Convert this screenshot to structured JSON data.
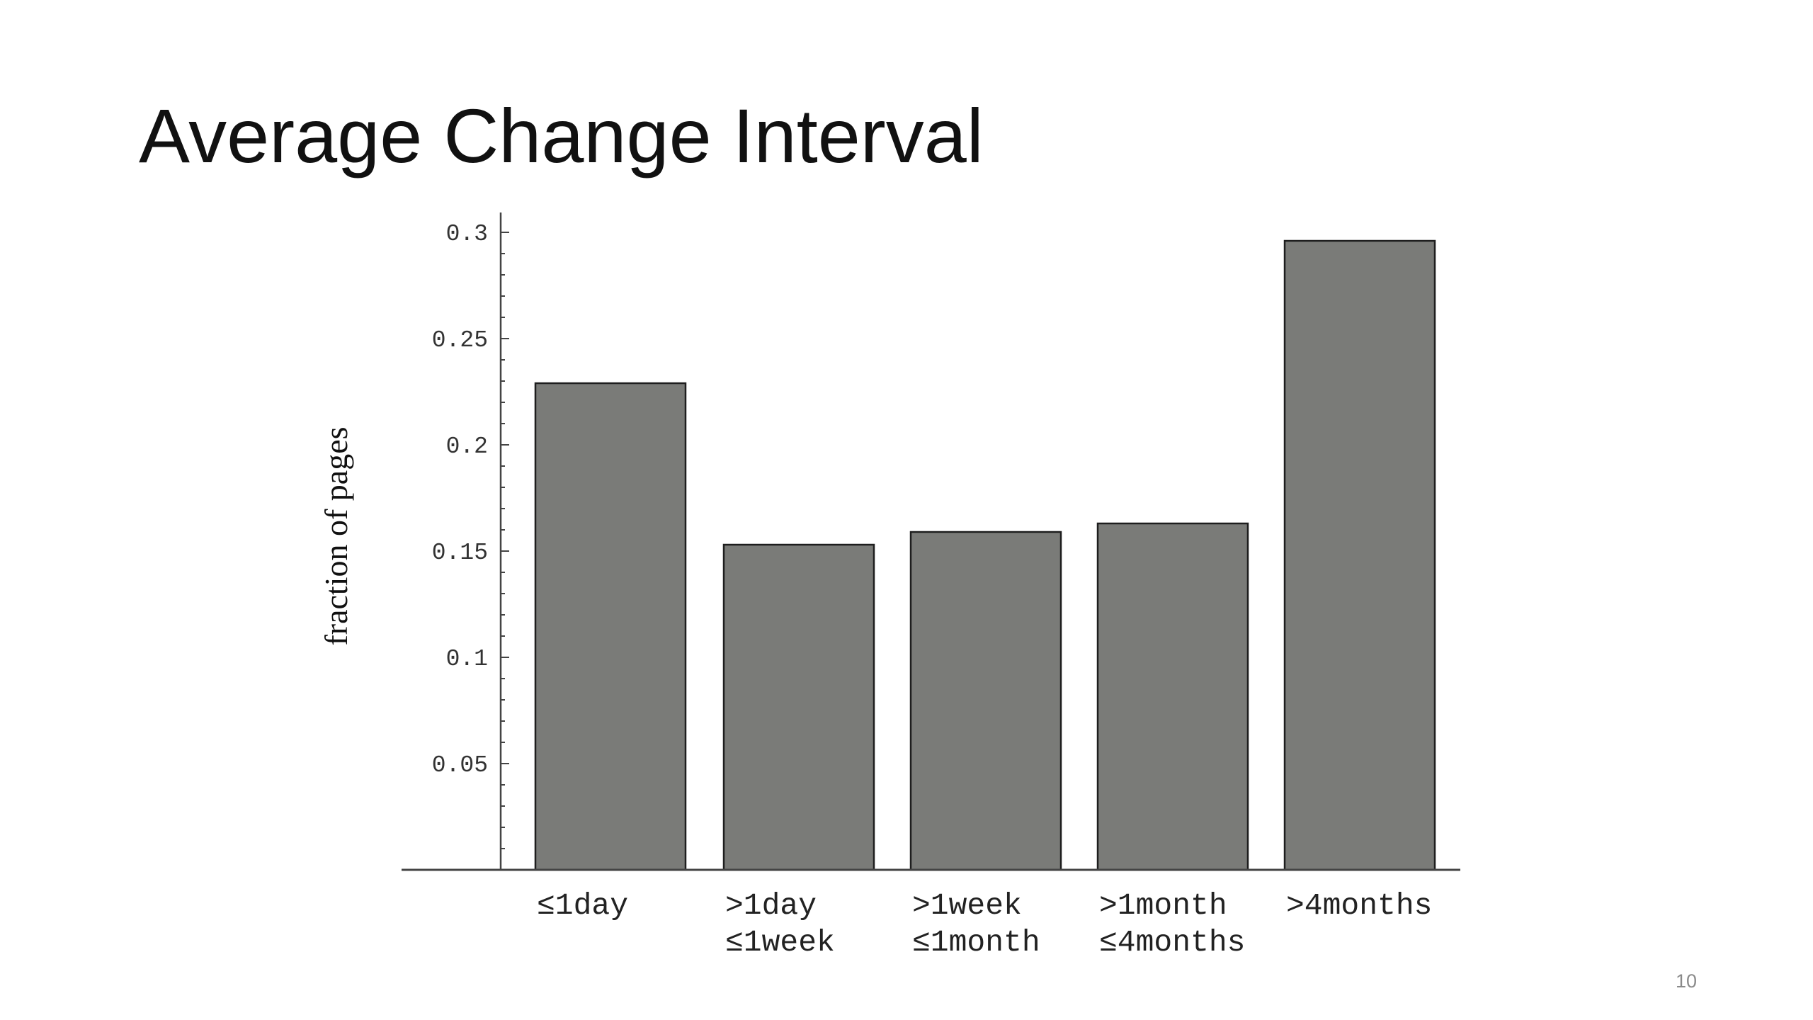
{
  "slide": {
    "title": "Average Change Interval",
    "page_number": "10"
  },
  "chart_data": {
    "type": "bar",
    "title": "",
    "xlabel": "",
    "ylabel": "fraction of pages",
    "categories": [
      [
        "≤1day"
      ],
      [
        ">1day",
        "≤1week"
      ],
      [
        ">1week",
        "≤1month"
      ],
      [
        ">1month",
        "≤4months"
      ],
      [
        ">4months"
      ]
    ],
    "values": [
      0.229,
      0.153,
      0.159,
      0.163,
      0.296
    ],
    "ylim": [
      0,
      0.31
    ],
    "yticks": [
      "0.05",
      "0.1",
      "0.15",
      "0.2",
      "0.25",
      "0.3"
    ],
    "grid": false,
    "bar_color": "#7a7b78",
    "bar_edge_color": "#1e1e1e",
    "axis_color": "#444444"
  }
}
